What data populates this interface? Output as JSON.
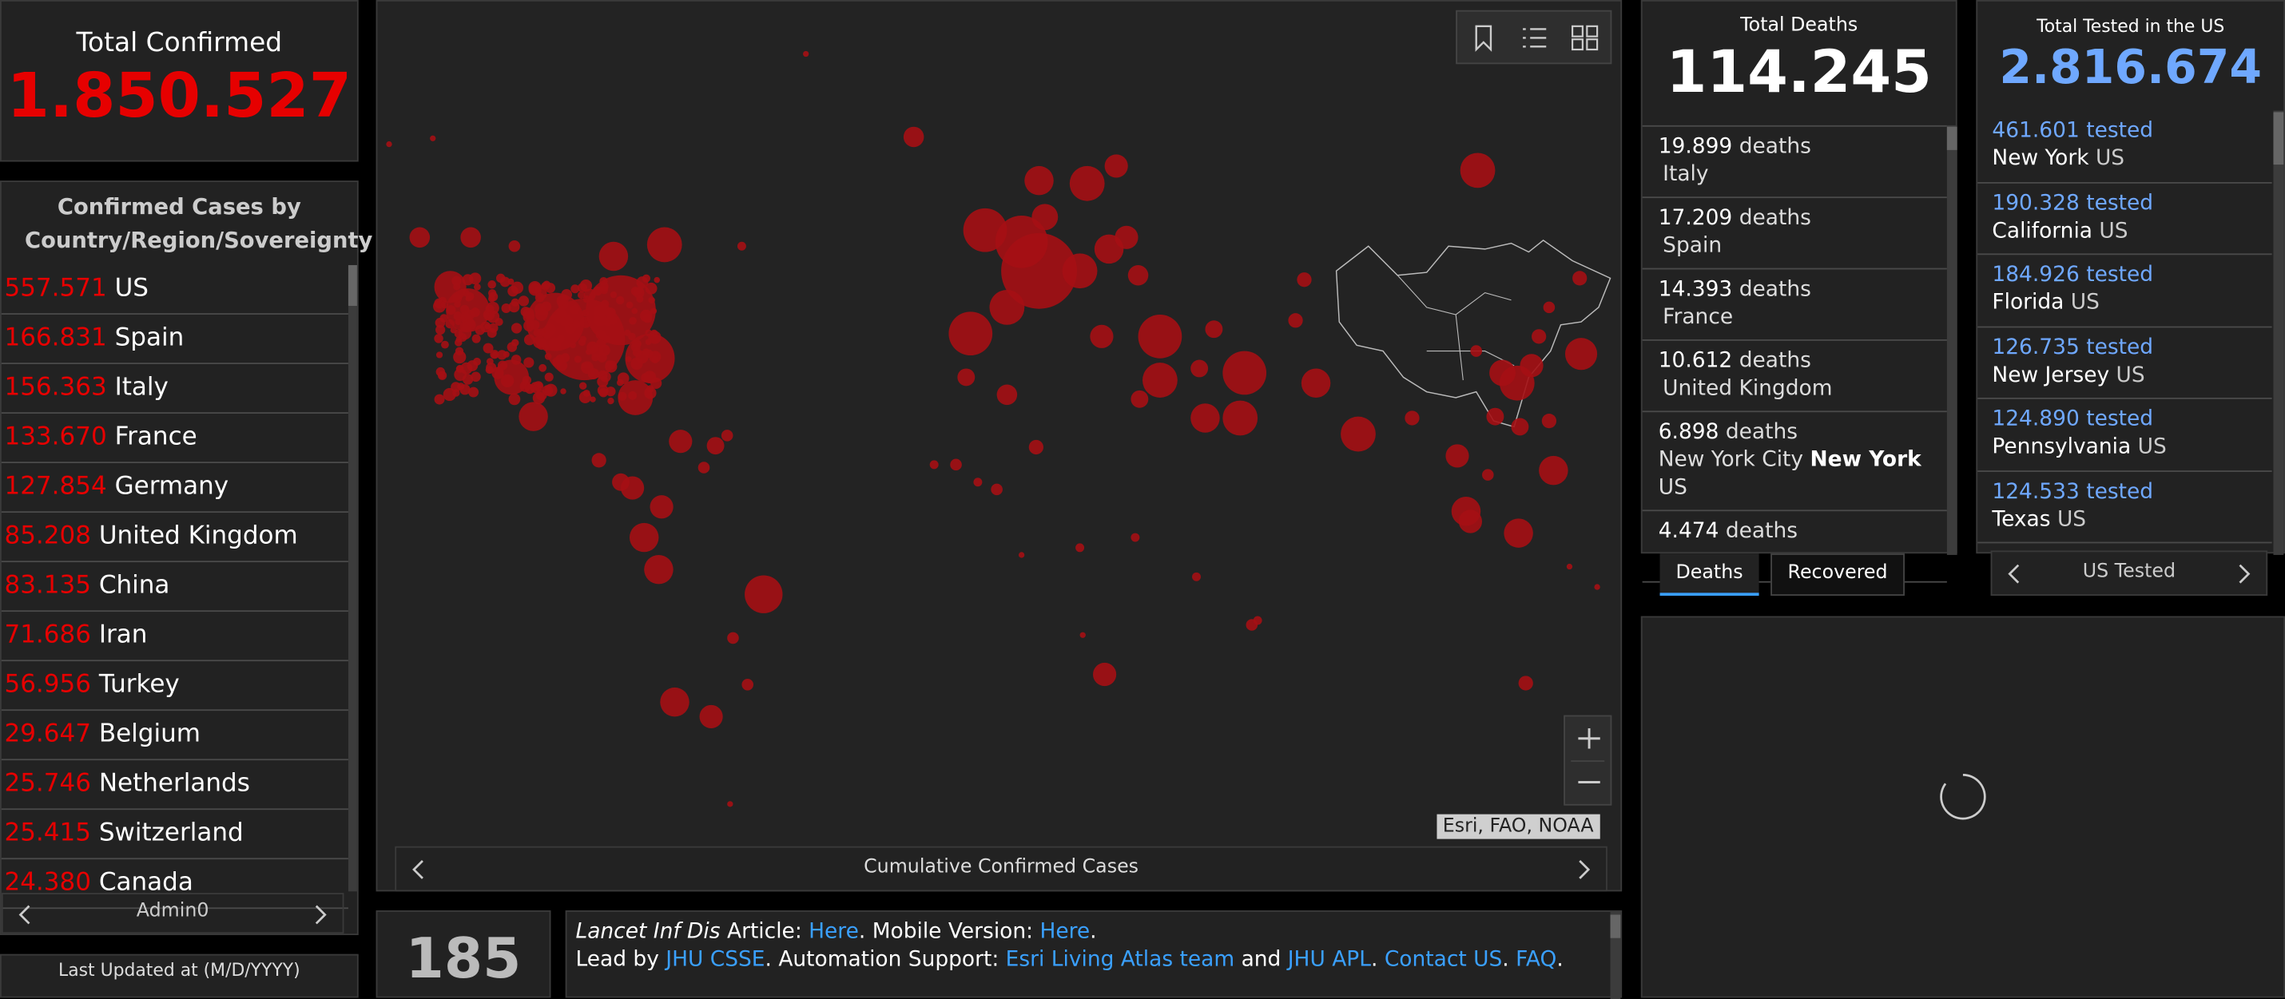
{
  "total_confirmed": {
    "title": "Total Confirmed",
    "value": "1.850.527"
  },
  "confirmed_by_country": {
    "title": "Confirmed Cases by Country/Region/Sovereignty",
    "rows": [
      {
        "count": "557.571",
        "name": "US"
      },
      {
        "count": "166.831",
        "name": "Spain"
      },
      {
        "count": "156.363",
        "name": "Italy"
      },
      {
        "count": "133.670",
        "name": "France"
      },
      {
        "count": "127.854",
        "name": "Germany"
      },
      {
        "count": "85.208",
        "name": "United Kingdom"
      },
      {
        "count": "83.135",
        "name": "China"
      },
      {
        "count": "71.686",
        "name": "Iran"
      },
      {
        "count": "56.956",
        "name": "Turkey"
      },
      {
        "count": "29.647",
        "name": "Belgium"
      },
      {
        "count": "25.746",
        "name": "Netherlands"
      },
      {
        "count": "25.415",
        "name": "Switzerland"
      },
      {
        "count": "24.380",
        "name": "Canada"
      }
    ],
    "nav_label": "Admin0"
  },
  "last_updated": {
    "label": "Last Updated at (M/D/YYYY)"
  },
  "map": {
    "attribution": "Esri, FAO, NOAA",
    "caption": "Cumulative Confirmed Cases"
  },
  "countries_count": "185",
  "about": {
    "line1": [
      "Lancet Inf Dis",
      " Article: ",
      "Here",
      ". Mobile Version: ",
      "Here",
      "."
    ],
    "line2": [
      "Lead by ",
      "JHU CSSE",
      ". Automation Support: ",
      "Esri Living Atlas team",
      " and ",
      "JHU APL",
      ". ",
      "Contact US",
      ". ",
      "FAQ",
      "."
    ]
  },
  "total_deaths": {
    "title": "Total Deaths",
    "value": "114.245",
    "rows": [
      {
        "count": "19.899",
        "unit": "deaths",
        "place": "Italy"
      },
      {
        "count": "17.209",
        "unit": "deaths",
        "place": "Spain"
      },
      {
        "count": "14.393",
        "unit": "deaths",
        "place": "France"
      },
      {
        "count": "10.612",
        "unit": "deaths",
        "place": "United Kingdom"
      },
      {
        "count": "6.898",
        "unit": "deaths",
        "place": "New York City",
        "region": "New York",
        "country": "US"
      },
      {
        "count": "4.474",
        "unit": "deaths"
      }
    ],
    "tabs": [
      "Deaths",
      "Recovered"
    ]
  },
  "total_tested": {
    "title": "Total Tested in the US",
    "value": "2.816.674",
    "rows": [
      {
        "count": "461.601",
        "unit": "tested",
        "place": "New York",
        "country": "US"
      },
      {
        "count": "190.328",
        "unit": "tested",
        "place": "California",
        "country": "US"
      },
      {
        "count": "184.926",
        "unit": "tested",
        "place": "Florida",
        "country": "US"
      },
      {
        "count": "126.735",
        "unit": "tested",
        "place": "New Jersey",
        "country": "US"
      },
      {
        "count": "124.890",
        "unit": "tested",
        "place": "Pennsylvania",
        "country": "US"
      },
      {
        "count": "124.533",
        "unit": "tested",
        "place": "Texas",
        "country": "US"
      }
    ],
    "nav_label": "US Tested"
  }
}
